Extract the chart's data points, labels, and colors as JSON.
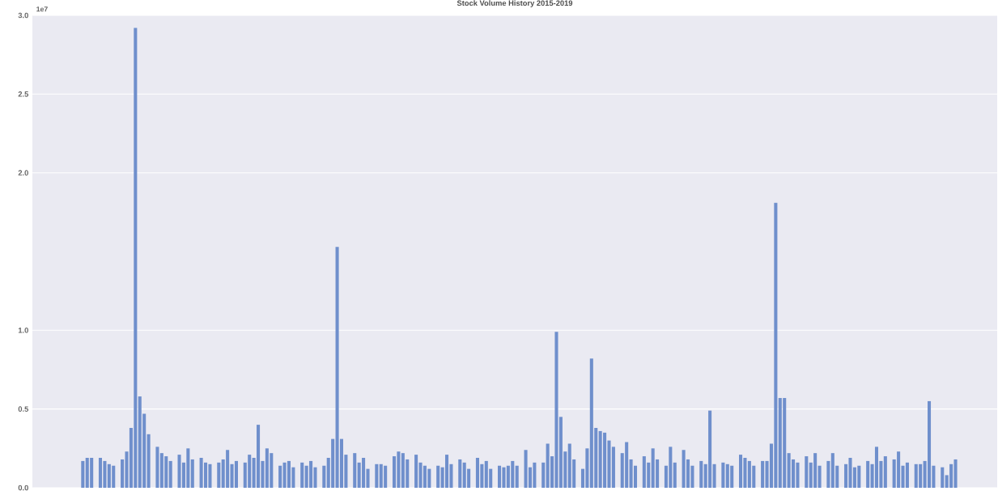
{
  "chart_data": {
    "type": "bar",
    "title": "Stock Volume History 2015-2019",
    "annotations": [
      "1e7"
    ],
    "categories": [
      null,
      null,
      null,
      null,
      null,
      null,
      null,
      null,
      null,
      null,
      null,
      null,
      null,
      null,
      null,
      null,
      null,
      null,
      null,
      null,
      null,
      null,
      null,
      null,
      null,
      null,
      null,
      null,
      null,
      null,
      null,
      null,
      null,
      null,
      null,
      null,
      null,
      null,
      null,
      null,
      null,
      null,
      null,
      null,
      null,
      null,
      null,
      null,
      null,
      null,
      null,
      null,
      null,
      null,
      null,
      null,
      null,
      null,
      null,
      null,
      null,
      null,
      null,
      null,
      null,
      null,
      null,
      null,
      null,
      null,
      null,
      null,
      null,
      null,
      null,
      null,
      null,
      null,
      null,
      null,
      null,
      null,
      null,
      null,
      null,
      null,
      null,
      null,
      null,
      null,
      null,
      null,
      null,
      null,
      null,
      null,
      null,
      null,
      null,
      null,
      null,
      null,
      null,
      null,
      null,
      null,
      null,
      null,
      null,
      null,
      null,
      null,
      null,
      null,
      null,
      null,
      null,
      null,
      null,
      null,
      null,
      null,
      null,
      null,
      null,
      null,
      null,
      null,
      null,
      null,
      null,
      null,
      null,
      null,
      null,
      null,
      null,
      null,
      null,
      null,
      null,
      null,
      null,
      null,
      null,
      null,
      null,
      null,
      null,
      null,
      null,
      null,
      null,
      null,
      null,
      null,
      null,
      null,
      null,
      null,
      null,
      null,
      null,
      null,
      null,
      null,
      null,
      null,
      null,
      null,
      null,
      null,
      null,
      null,
      null,
      null,
      null,
      null,
      null,
      null,
      null,
      null,
      null,
      null,
      null,
      null,
      null,
      null,
      null,
      null,
      null,
      null,
      null,
      null,
      null,
      null,
      null,
      null,
      null,
      null,
      null,
      null,
      null,
      null,
      null,
      null,
      null,
      null,
      null,
      null,
      null,
      null,
      null,
      null,
      null,
      null,
      null,
      null,
      null,
      null
    ],
    "values": [
      null,
      null,
      null,
      null,
      null,
      null,
      null,
      null,
      null,
      null,
      null,
      0.17,
      0.19,
      0.19,
      null,
      0.19,
      0.17,
      0.15,
      0.14,
      null,
      0.18,
      0.23,
      0.38,
      2.92,
      0.58,
      0.47,
      0.34,
      null,
      0.26,
      0.22,
      0.2,
      0.17,
      null,
      0.21,
      0.16,
      0.25,
      0.18,
      null,
      0.19,
      0.16,
      0.15,
      null,
      0.16,
      0.18,
      0.24,
      0.15,
      0.17,
      null,
      0.16,
      0.21,
      0.19,
      0.4,
      0.17,
      0.25,
      0.22,
      null,
      0.14,
      0.16,
      0.17,
      0.13,
      null,
      0.16,
      0.14,
      0.17,
      0.13,
      null,
      0.14,
      0.19,
      0.31,
      1.53,
      0.31,
      0.21,
      null,
      0.22,
      0.16,
      0.19,
      0.12,
      null,
      0.15,
      0.15,
      0.14,
      null,
      0.2,
      0.23,
      0.22,
      0.18,
      null,
      0.21,
      0.16,
      0.14,
      0.12,
      null,
      0.14,
      0.13,
      0.21,
      0.15,
      null,
      0.18,
      0.16,
      0.12,
      null,
      0.19,
      0.15,
      0.17,
      0.12,
      null,
      0.14,
      0.13,
      0.14,
      0.17,
      0.14,
      null,
      0.24,
      0.13,
      0.16,
      null,
      0.16,
      0.28,
      0.2,
      0.99,
      0.45,
      0.23,
      0.28,
      0.18,
      null,
      0.12,
      0.25,
      0.82,
      0.38,
      0.36,
      0.35,
      0.3,
      0.26,
      null,
      0.22,
      0.29,
      0.18,
      0.14,
      null,
      0.2,
      0.16,
      0.25,
      0.18,
      null,
      0.14,
      0.26,
      0.16,
      null,
      0.24,
      0.18,
      0.14,
      null,
      0.17,
      0.15,
      0.49,
      0.15,
      null,
      0.16,
      0.15,
      0.14,
      null,
      0.21,
      0.19,
      0.17,
      0.14,
      null,
      0.17,
      0.17,
      0.28,
      1.81,
      0.57,
      0.57,
      0.22,
      0.18,
      0.16,
      null,
      0.2,
      0.16,
      0.22,
      0.14,
      null,
      0.17,
      0.22,
      0.14,
      null,
      0.15,
      0.19,
      0.13,
      0.14,
      null,
      0.17,
      0.15,
      0.26,
      0.17,
      0.2,
      null,
      0.18,
      0.23,
      0.14,
      0.16,
      null,
      0.15,
      0.15,
      0.17,
      0.55,
      0.14,
      null,
      0.13,
      0.08,
      0.15,
      0.18,
      null,
      null,
      null,
      null,
      null,
      null,
      null,
      null,
      null
    ],
    "color": "#6f8fcc",
    "ylim": [
      0,
      3.0
    ],
    "yticks": [
      {
        "value": 0,
        "label": "0.0"
      },
      {
        "value": 0.5,
        "label": "0.5"
      },
      {
        "value": 1.0,
        "label": "1.0"
      },
      {
        "value": 2.0,
        "label": "2.0"
      },
      {
        "value": 2.5,
        "label": "2.5"
      },
      {
        "value": 3.0,
        "label": "3.0"
      }
    ],
    "grid": "y",
    "tick_labels": "y"
  }
}
